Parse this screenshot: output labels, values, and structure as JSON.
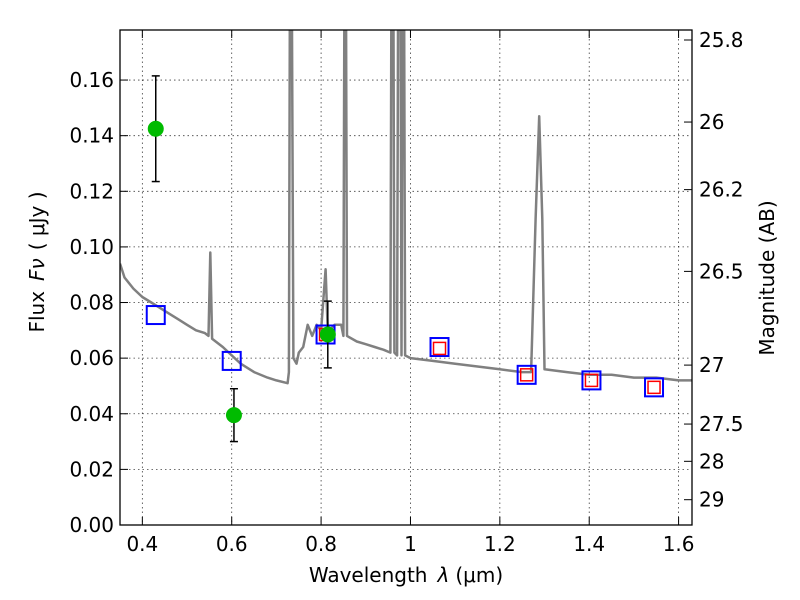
{
  "chart_data": {
    "type": "scatter",
    "xlabel": "Wavelength",
    "xlabel_symbol": "λ",
    "xlabel_unit": "(μm)",
    "ylabel": "Flux",
    "ylabel_symbol": "Fν",
    "ylabel_unit": "( μJy )",
    "y2label": "Magnitude (AB)",
    "xlim": [
      0.35,
      1.63
    ],
    "ylim": [
      0.0,
      0.178
    ],
    "grid": true,
    "x_ticks": [
      0.4,
      0.6,
      0.8,
      1.0,
      1.2,
      1.4,
      1.6
    ],
    "x_tick_labels": [
      "0.4",
      "0.6",
      "0.8",
      "1",
      "1.2",
      "1.4",
      "1.6"
    ],
    "y_ticks": [
      0.0,
      0.02,
      0.04,
      0.06,
      0.08,
      0.1,
      0.12,
      0.14,
      0.16
    ],
    "y_tick_labels": [
      "0.00",
      "0.02",
      "0.04",
      "0.06",
      "0.08",
      "0.10",
      "0.12",
      "0.14",
      "0.16"
    ],
    "y2_ticks": [
      {
        "label": "25.8",
        "flux": 0.1744
      },
      {
        "label": "26",
        "flux": 0.1449
      },
      {
        "label": "26.2",
        "flux": 0.1206
      },
      {
        "label": "26.5",
        "flux": 0.0912
      },
      {
        "label": "27",
        "flux": 0.0575
      },
      {
        "label": "27.5",
        "flux": 0.0363
      },
      {
        "label": "28",
        "flux": 0.0229
      },
      {
        "label": "29",
        "flux": 0.0091
      }
    ],
    "series": [
      {
        "kind": "line",
        "color": "#808080",
        "points": [
          [
            0.35,
            0.094
          ],
          [
            0.36,
            0.089
          ],
          [
            0.38,
            0.085
          ],
          [
            0.4,
            0.082
          ],
          [
            0.42,
            0.08
          ],
          [
            0.44,
            0.078
          ],
          [
            0.46,
            0.076
          ],
          [
            0.48,
            0.074
          ],
          [
            0.5,
            0.072
          ],
          [
            0.52,
            0.07
          ],
          [
            0.54,
            0.069
          ],
          [
            0.548,
            0.068
          ],
          [
            0.552,
            0.098
          ],
          [
            0.556,
            0.067
          ],
          [
            0.58,
            0.064
          ],
          [
            0.6,
            0.061
          ],
          [
            0.62,
            0.058
          ],
          [
            0.65,
            0.055
          ],
          [
            0.68,
            0.053
          ],
          [
            0.7,
            0.052
          ],
          [
            0.725,
            0.051
          ],
          [
            0.728,
            0.055
          ],
          [
            0.73,
            0.178
          ],
          [
            0.735,
            0.178
          ],
          [
            0.738,
            0.06
          ],
          [
            0.745,
            0.058
          ],
          [
            0.75,
            0.062
          ],
          [
            0.76,
            0.064
          ],
          [
            0.77,
            0.072
          ],
          [
            0.78,
            0.068
          ],
          [
            0.79,
            0.072
          ],
          [
            0.8,
            0.07
          ],
          [
            0.81,
            0.092
          ],
          [
            0.815,
            0.069
          ],
          [
            0.83,
            0.072
          ],
          [
            0.845,
            0.072
          ],
          [
            0.85,
            0.068
          ],
          [
            0.852,
            0.178
          ],
          [
            0.856,
            0.178
          ],
          [
            0.858,
            0.068
          ],
          [
            0.88,
            0.066
          ],
          [
            0.9,
            0.065
          ],
          [
            0.92,
            0.064
          ],
          [
            0.94,
            0.063
          ],
          [
            0.955,
            0.062
          ],
          [
            0.957,
            0.178
          ],
          [
            0.962,
            0.178
          ],
          [
            0.964,
            0.062
          ],
          [
            0.97,
            0.061
          ],
          [
            0.972,
            0.178
          ],
          [
            0.978,
            0.178
          ],
          [
            0.98,
            0.061
          ],
          [
            0.982,
            0.178
          ],
          [
            0.986,
            0.178
          ],
          [
            0.988,
            0.061
          ],
          [
            1.0,
            0.06
          ],
          [
            1.05,
            0.059
          ],
          [
            1.1,
            0.058
          ],
          [
            1.15,
            0.057
          ],
          [
            1.2,
            0.056
          ],
          [
            1.25,
            0.055
          ],
          [
            1.27,
            0.055
          ],
          [
            1.28,
            0.11
          ],
          [
            1.288,
            0.147
          ],
          [
            1.295,
            0.11
          ],
          [
            1.3,
            0.056
          ],
          [
            1.35,
            0.055
          ],
          [
            1.4,
            0.054
          ],
          [
            1.45,
            0.054
          ],
          [
            1.5,
            0.053
          ],
          [
            1.55,
            0.053
          ],
          [
            1.6,
            0.052
          ],
          [
            1.63,
            0.052
          ]
        ]
      },
      {
        "kind": "open-square",
        "color": "#0000ff",
        "points": [
          [
            0.43,
            0.0755
          ],
          [
            0.6,
            0.059
          ],
          [
            0.81,
            0.0685
          ],
          [
            1.065,
            0.064
          ],
          [
            1.26,
            0.054
          ],
          [
            1.405,
            0.052
          ],
          [
            1.545,
            0.0495
          ]
        ]
      },
      {
        "kind": "open-square",
        "color": "#ff0000",
        "points": [
          [
            0.81,
            0.0685
          ],
          [
            1.065,
            0.0635
          ],
          [
            1.26,
            0.054
          ],
          [
            1.405,
            0.052
          ],
          [
            1.545,
            0.0495
          ]
        ]
      },
      {
        "kind": "circle-errorbar",
        "color": "#00bb00",
        "points": [
          {
            "x": 0.43,
            "y": 0.1425,
            "err": 0.019
          },
          {
            "x": 0.605,
            "y": 0.0395,
            "err": 0.0095
          },
          {
            "x": 0.815,
            "y": 0.0685,
            "err": 0.012
          }
        ]
      }
    ],
    "colors": {
      "line": "#808080",
      "blue": "#0000ff",
      "red": "#ff0000",
      "green": "#00bb00"
    }
  }
}
